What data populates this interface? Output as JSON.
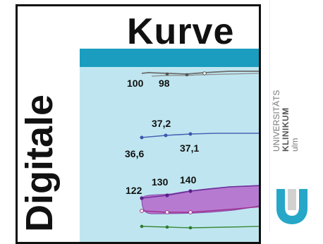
{
  "poster": {
    "title_horizontal": "Kurve",
    "title_vertical": "Digitale"
  },
  "chart_labels": {
    "row1": [
      "100",
      "98"
    ],
    "row2_top": "37,2",
    "row2_left": "36,6",
    "row2_right": "37,1",
    "row3": [
      "122",
      "130",
      "140"
    ]
  },
  "logo": {
    "line1": "UNIVERSITÄTS",
    "line2": "KLINIKUM",
    "line3": "ulm"
  },
  "colors": {
    "teal": "#1b9dc0",
    "chart_bg": "#bfe6f0",
    "purple_band": "#b77ad1",
    "logo_teal": "#26a7c7"
  }
}
